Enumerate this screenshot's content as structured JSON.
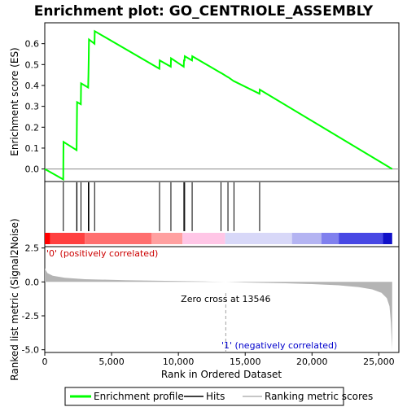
{
  "chart_data": {
    "type": "line",
    "title": "Enrichment plot: GO_CENTRIOLE_ASSEMBLY",
    "xlabel": "Rank in Ordered Dataset",
    "panels": [
      {
        "name": "enrichment",
        "ylabel": "Enrichment score (ES)",
        "ylim": [
          -0.06,
          0.7
        ],
        "yticks": [
          "0.0",
          "0.1",
          "0.2",
          "0.3",
          "0.4",
          "0.5",
          "0.6"
        ],
        "ytick_values": [
          0.0,
          0.1,
          0.2,
          0.3,
          0.4,
          0.5,
          0.6
        ],
        "series": [
          {
            "name": "Enrichment profile",
            "color": "#00ff00",
            "x": [
              0,
              1380,
              1400,
              2380,
              2400,
              2420,
              2700,
              2720,
              3250,
              3270,
              3290,
              3310,
              3720,
              3740,
              8580,
              8600,
              9430,
              9450,
              10400,
              10420,
              10460,
              10480,
              11020,
              11040,
              13180,
              13200,
              13700,
              13720,
              14150,
              14170,
              16070,
              16090,
              26000
            ],
            "y": [
              0.0,
              -0.05,
              0.13,
              0.09,
              0.2,
              0.32,
              0.31,
              0.41,
              0.39,
              0.46,
              0.53,
              0.62,
              0.6,
              0.66,
              0.48,
              0.52,
              0.49,
              0.53,
              0.49,
              0.52,
              0.52,
              0.54,
              0.52,
              0.54,
              0.46,
              0.46,
              0.44,
              0.44,
              0.42,
              0.42,
              0.36,
              0.38,
              0.0
            ]
          }
        ]
      },
      {
        "name": "hits",
        "series": [
          {
            "name": "Hits",
            "color": "#000000",
            "x": [
              1390,
              2390,
              2410,
              2710,
              3260,
              3280,
              3300,
              3730,
              8590,
              9440,
              10410,
              10470,
              11030,
              13190,
              13710,
              14160,
              16080
            ]
          }
        ]
      },
      {
        "name": "ranked-list",
        "ylabel": "Ranked list metric (Signal2Noise)",
        "ylim": [
          -5.2,
          2.6
        ],
        "yticks": [
          "2.5",
          "0.0",
          "-2.5",
          "-5.0"
        ],
        "ytick_values": [
          2.5,
          0.0,
          -2.5,
          -5.0
        ],
        "series": [
          {
            "name": "Ranking metric scores",
            "color": "#b4b4b4",
            "x": [
              0,
              200,
              600,
              1500,
              3000,
              6000,
              9000,
              12000,
              13546,
              15000,
              18000,
              20000,
              22000,
              23500,
              24500,
              25200,
              25600,
              25800,
              25900,
              26000
            ],
            "y": [
              1.0,
              0.65,
              0.45,
              0.3,
              0.2,
              0.13,
              0.08,
              0.03,
              0.0,
              -0.04,
              -0.1,
              -0.16,
              -0.25,
              -0.38,
              -0.55,
              -0.8,
              -1.2,
              -1.8,
              -3.0,
              -5.0
            ]
          }
        ],
        "annotations": {
          "zero_cross": "Zero cross at 13546",
          "positive": "'0' (positively correlated)",
          "negative": "'1' (negatively correlated)"
        },
        "zero_cross_x": 13546
      }
    ],
    "xlim": [
      0,
      26500
    ],
    "xticks": [
      "0",
      "5,000",
      "10,000",
      "15,000",
      "20,000",
      "25,000"
    ],
    "xtick_values": [
      0,
      5000,
      10000,
      15000,
      20000,
      25000
    ],
    "heatmap_colors": [
      "#ff0000",
      "#ff4040",
      "#ff6f6f",
      "#ffa0a0",
      "#ffc6e6",
      "#d8d8f8",
      "#b4b4f2",
      "#8080ee",
      "#4848e4",
      "#1010c8"
    ],
    "heatmap_stops": [
      0,
      400,
      3000,
      8000,
      10300,
      13500,
      18500,
      20700,
      22000,
      25300,
      26000
    ],
    "legend": {
      "placement": "bottom"
    }
  }
}
